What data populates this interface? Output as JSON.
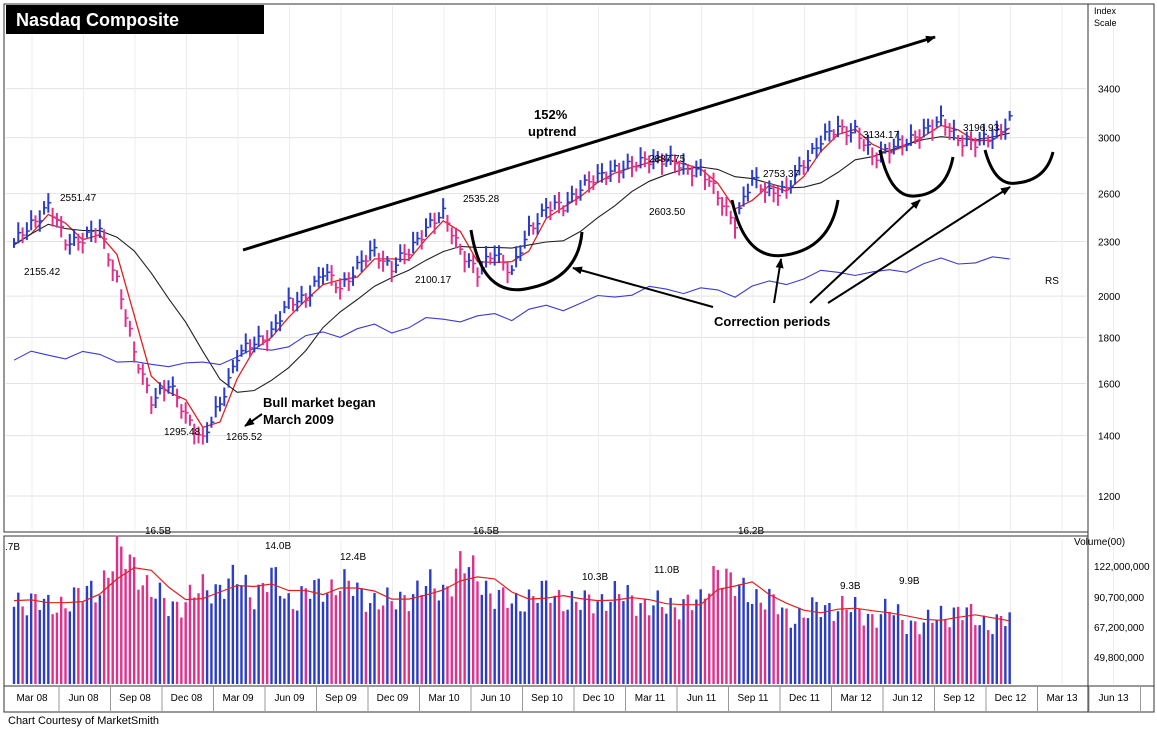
{
  "chart_title": "Nasdaq Composite",
  "credit": "Chart Courtesy of MarketSmith",
  "price_panel": {
    "scale_label_line1": "Index",
    "scale_label_line2": "Scale",
    "y_axis_ticks": [
      1200,
      1400,
      1600,
      1800,
      2000,
      2300,
      2600,
      3000,
      3400
    ],
    "y_scale": "log",
    "ylim": [
      1100,
      4200
    ],
    "rs_label": "RS"
  },
  "volume_panel": {
    "header": "Volume(00)",
    "y_axis_ticks": [
      "122,000,000",
      "90,700,000",
      "67,200,000",
      "49,800,000"
    ],
    "y_axis_values": [
      122000000,
      90700000,
      67200000,
      49800000
    ]
  },
  "x_axis_labels": [
    "Mar 08",
    "Jun 08",
    "Sep 08",
    "Dec 08",
    "Mar 09",
    "Jun 09",
    "Sep 09",
    "Dec 09",
    "Mar 10",
    "Jun 10",
    "Sep 10",
    "Dec 10",
    "Mar 11",
    "Jun 11",
    "Sep 11",
    "Dec 11",
    "Mar 12",
    "Jun 12",
    "Sep 12",
    "Dec 12",
    "Mar 13",
    "Jun 13"
  ],
  "annotations": {
    "uptrend_pct": "152%",
    "uptrend_word": "uptrend",
    "bull_line1": "Bull market began",
    "bull_line2": "March 2009",
    "correction": "Correction periods"
  },
  "price_labels": [
    "2551.47",
    "2155.42",
    "1295.48",
    "1265.52",
    "2535.28",
    "2100.17",
    "2887.75",
    "2603.50",
    "2753.37",
    "3134.17",
    "3196.93"
  ],
  "volume_labels": [
    ".7B",
    "16.5B",
    "14.0B",
    "12.4B",
    "16.5B",
    "10.3B",
    "11.0B",
    "16.2B",
    "9.3B",
    "9.9B"
  ],
  "chart_data": {
    "type": "line",
    "title": "Nasdaq Composite",
    "x": [
      "Mar 08",
      "Apr 08",
      "May 08",
      "Jun 08",
      "Jul 08",
      "Aug 08",
      "Sep 08",
      "Oct 08",
      "Nov 08",
      "Dec 08",
      "Jan 09",
      "Feb 09",
      "Mar 09",
      "Apr 09",
      "May 09",
      "Jun 09",
      "Jul 09",
      "Aug 09",
      "Sep 09",
      "Oct 09",
      "Nov 09",
      "Dec 09",
      "Jan 10",
      "Feb 10",
      "Mar 10",
      "Apr 10",
      "May 10",
      "Jun 10",
      "Jul 10",
      "Aug 10",
      "Sep 10",
      "Oct 10",
      "Nov 10",
      "Dec 10",
      "Jan 11",
      "Feb 11",
      "Mar 11",
      "Apr 11",
      "May 11",
      "Jun 11",
      "Jul 11",
      "Aug 11",
      "Sep 11",
      "Oct 11",
      "Nov 11",
      "Dec 11",
      "Jan 12",
      "Feb 12",
      "Mar 12",
      "Apr 12",
      "May 12",
      "Jun 12",
      "Jul 12",
      "Aug 12",
      "Sep 12",
      "Oct 12",
      "Nov 12",
      "Dec 12",
      "Jan 13"
    ],
    "series": [
      {
        "values": [
          2280,
          2410,
          2520,
          2300,
          2320,
          2360,
          2090,
          1720,
          1540,
          1590,
          1480,
          1380,
          1520,
          1720,
          1770,
          1830,
          1960,
          2000,
          2120,
          2050,
          2150,
          2250,
          2150,
          2240,
          2390,
          2460,
          2260,
          2110,
          2250,
          2120,
          2370,
          2510,
          2510,
          2650,
          2700,
          2780,
          2780,
          2850,
          2830,
          2780,
          2760,
          2580,
          2420,
          2690,
          2620,
          2610,
          2820,
          2970,
          3080,
          3050,
          2850,
          2930,
          2950,
          3070,
          3120,
          3000,
          2950,
          3010,
          3140
        ]
      }
    ],
    "volume": {
      "values": [
        95,
        96,
        90,
        95,
        98,
        105,
        125,
        120,
        100,
        92,
        95,
        102,
        105,
        108,
        100,
        110,
        95,
        100,
        102,
        108,
        100,
        96,
        92,
        100,
        104,
        102,
        118,
        112,
        98,
        92,
        98,
        100,
        97,
        92,
        96,
        98,
        97,
        92,
        90,
        95,
        92,
        120,
        102,
        100,
        95,
        85,
        86,
        90,
        92,
        88,
        85,
        88,
        82,
        78,
        86,
        88,
        83,
        80,
        82
      ],
      "units": "shares (00)"
    },
    "y_scale": "log",
    "ylim": [
      1100,
      4200
    ],
    "grid": true
  }
}
